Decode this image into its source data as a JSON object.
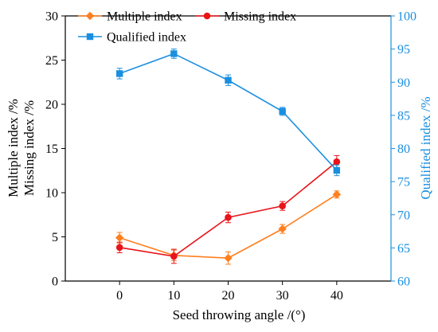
{
  "chart_data": {
    "type": "line",
    "x_values": [
      0,
      10,
      20,
      30,
      40
    ],
    "xlim": [
      -10,
      50
    ],
    "x_ticks": [
      0,
      10,
      20,
      30,
      40
    ],
    "xlabel": "Seed throwing angle /(°)",
    "y_left": {
      "label_line1": "Multiple index /%",
      "label_line2": "Missing index /%",
      "lim": [
        0,
        30
      ],
      "ticks": [
        0,
        5,
        10,
        15,
        20,
        25,
        30
      ]
    },
    "y_right": {
      "label": "Qualified index /%",
      "lim": [
        60,
        100
      ],
      "ticks": [
        60,
        65,
        70,
        75,
        80,
        85,
        90,
        95,
        100
      ],
      "color": "#1a8fe0"
    },
    "grid": false,
    "legend_placement": "top",
    "series": [
      {
        "name": "Multiple index",
        "axis": "left",
        "marker": "diamond",
        "color": "#ff7f1f",
        "values": [
          4.9,
          2.9,
          2.6,
          5.9,
          9.8
        ],
        "errors": [
          0.6,
          0.6,
          0.7,
          0.5,
          0.4
        ]
      },
      {
        "name": "Missing index",
        "axis": "left",
        "marker": "circle",
        "color": "#e8141a",
        "values": [
          3.8,
          2.8,
          7.2,
          8.5,
          13.5
        ],
        "errors": [
          0.6,
          0.8,
          0.6,
          0.5,
          0.7
        ]
      },
      {
        "name": "Qualified index",
        "axis": "right",
        "marker": "square",
        "color": "#1a8fe0",
        "values": [
          91.3,
          94.3,
          90.3,
          85.6,
          76.7
        ],
        "errors": [
          0.8,
          0.7,
          0.8,
          0.6,
          0.8
        ]
      }
    ]
  }
}
